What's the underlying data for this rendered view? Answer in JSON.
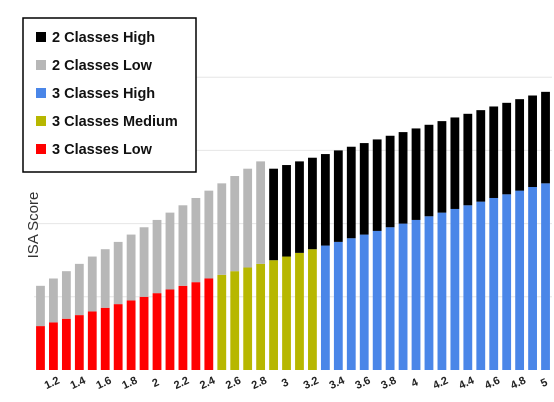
{
  "chart_data": {
    "type": "bar",
    "stacked": true,
    "title": "",
    "xlabel": "",
    "ylabel": "ISA Score",
    "x": [
      1.1,
      1.2,
      1.3,
      1.4,
      1.5,
      1.6,
      1.7,
      1.8,
      1.9,
      2.0,
      2.1,
      2.2,
      2.3,
      2.4,
      2.5,
      2.6,
      2.7,
      2.8,
      2.9,
      3.0,
      3.1,
      3.2,
      3.3,
      3.4,
      3.5,
      3.6,
      3.7,
      3.8,
      3.9,
      4.0,
      4.1,
      4.2,
      4.3,
      4.4,
      4.5,
      4.6,
      4.7,
      4.8,
      4.9,
      5.0
    ],
    "x_tick_labels": [
      "1.2",
      "1.4",
      "1.6",
      "1.8",
      "2",
      "2.2",
      "2.4",
      "2.6",
      "2.8",
      "3",
      "3.2",
      "3.4",
      "3.6",
      "3.8",
      "4",
      "4.2",
      "4.4",
      "4.6",
      "4.8",
      "5"
    ],
    "x_tick_values": [
      1.2,
      1.4,
      1.6,
      1.8,
      2.0,
      2.2,
      2.4,
      2.6,
      2.8,
      3.0,
      3.2,
      3.4,
      3.6,
      3.8,
      4.0,
      4.2,
      4.4,
      4.6,
      4.8,
      5.0
    ],
    "y_tick_labels": [],
    "ylim": [
      0,
      5
    ],
    "grid": true,
    "legend": "top-left",
    "series": [
      {
        "name": "3 Classes Low",
        "color": "#ff0000",
        "values": [
          0.6,
          0.65,
          0.7,
          0.75,
          0.8,
          0.85,
          0.9,
          0.95,
          1.0,
          1.05,
          1.1,
          1.15,
          1.2,
          1.25,
          0,
          0,
          0,
          0,
          0,
          0,
          0,
          0,
          0,
          0,
          0,
          0,
          0,
          0,
          0,
          0,
          0,
          0,
          0,
          0,
          0,
          0,
          0,
          0,
          0,
          0
        ]
      },
      {
        "name": "3 Classes Medium",
        "color": "#b7b700",
        "values": [
          0,
          0,
          0,
          0,
          0,
          0,
          0,
          0,
          0,
          0,
          0,
          0,
          0,
          0,
          1.3,
          1.35,
          1.4,
          1.45,
          1.5,
          1.55,
          1.6,
          1.65,
          0,
          0,
          0,
          0,
          0,
          0,
          0,
          0,
          0,
          0,
          0,
          0,
          0,
          0,
          0,
          0,
          0,
          0
        ]
      },
      {
        "name": "3 Classes High",
        "color": "#4a86e8",
        "values": [
          0,
          0,
          0,
          0,
          0,
          0,
          0,
          0,
          0,
          0,
          0,
          0,
          0,
          0,
          0,
          0,
          0,
          0,
          0,
          0,
          0,
          0,
          1.7,
          1.75,
          1.8,
          1.85,
          1.9,
          1.95,
          2.0,
          2.05,
          2.1,
          2.15,
          2.2,
          2.25,
          2.3,
          2.35,
          2.4,
          2.45,
          2.5,
          2.55
        ]
      },
      {
        "name": "2 Classes Low",
        "color": "#b7b7b7",
        "values": [
          0.55,
          0.6,
          0.65,
          0.7,
          0.75,
          0.8,
          0.85,
          0.9,
          0.95,
          1.0,
          1.05,
          1.1,
          1.15,
          1.2,
          1.25,
          1.3,
          1.35,
          1.4,
          0,
          0,
          0,
          0,
          0,
          0,
          0,
          0,
          0,
          0,
          0,
          0,
          0,
          0,
          0,
          0,
          0,
          0,
          0,
          0,
          0,
          0
        ]
      },
      {
        "name": "2 Classes High",
        "color": "#000000",
        "values": [
          0,
          0,
          0,
          0,
          0,
          0,
          0,
          0,
          0,
          0,
          0,
          0,
          0,
          0,
          0,
          0,
          0,
          0,
          1.25,
          1.25,
          1.25,
          1.25,
          1.25,
          1.25,
          1.25,
          1.25,
          1.25,
          1.25,
          1.25,
          1.25,
          1.25,
          1.25,
          1.25,
          1.25,
          1.25,
          1.25,
          1.25,
          1.25,
          1.25,
          1.25
        ]
      }
    ],
    "legend_entries": [
      {
        "label": "2 Classes High",
        "color": "#000000"
      },
      {
        "label": "2 Classes Low",
        "color": "#b7b7b7"
      },
      {
        "label": "3 Classes High",
        "color": "#4a86e8"
      },
      {
        "label": "3 Classes Medium",
        "color": "#b7b700"
      },
      {
        "label": "3 Classes Low",
        "color": "#ff0000"
      }
    ]
  }
}
